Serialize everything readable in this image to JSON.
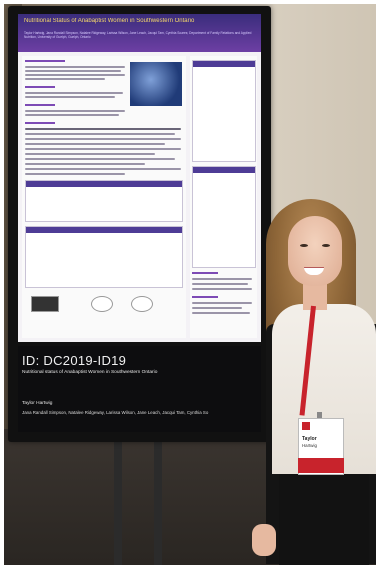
{
  "photo": {
    "poster": {
      "header_title": "Nutritional Status of Anabaptist Women in Southwestern Ontario",
      "header_authors": "Taylor Hartwig, Jana Randall Simpson, Natalee Ridgeway, Larissa Wilson, Jane Leach, Jacqui Tam, Cynthia Soares; Department of Family Relations and Applied Nutrition, University of Guelph, Guelph, Ontario",
      "poster_id": "ID: DC2019-ID19",
      "subtitle": "Nutritional status of Anabaptist Women in Southwestern Ontario",
      "presenter": "Taylor Hartwig",
      "coauthors": "Jana Randall Simpson, Natalee Ridgeway, Larissa Wilson, Jane Leach, Jacqui Tam, Cynthia So"
    },
    "badge": {
      "first_name": "Taylor",
      "last_name": "Hartwig"
    },
    "colors": {
      "poster_header": "#4a3591",
      "poster_title_text": "#f7d86b",
      "lanyard": "#c8232c"
    }
  }
}
